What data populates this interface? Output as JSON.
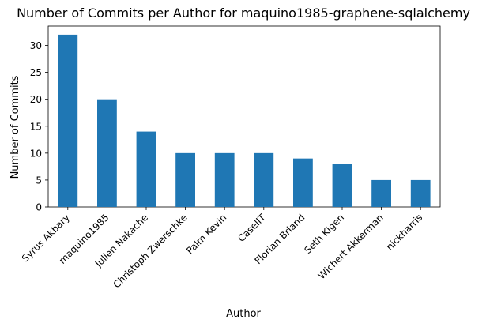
{
  "chart_data": {
    "type": "bar",
    "title": "Number of Commits per Author for maquino1985-graphene-sqlalchemy",
    "xlabel": "Author",
    "ylabel": "Number of Commits",
    "categories": [
      "Syrus Akbary",
      "maquino1985",
      "Julien Nakache",
      "Christoph Zwerschke",
      "Palm Kevin",
      "CaselIT",
      "Florian Briand",
      "Seth Kigen",
      "Wichert Akkerman",
      "nickharris"
    ],
    "values": [
      32,
      20,
      14,
      10,
      10,
      10,
      9,
      8,
      5,
      5
    ],
    "ylim": [
      0,
      33.6
    ],
    "yticks": [
      0,
      5,
      10,
      15,
      20,
      25,
      30
    ],
    "grid": false,
    "legend": "none",
    "bar_color": "#1f77b4"
  }
}
